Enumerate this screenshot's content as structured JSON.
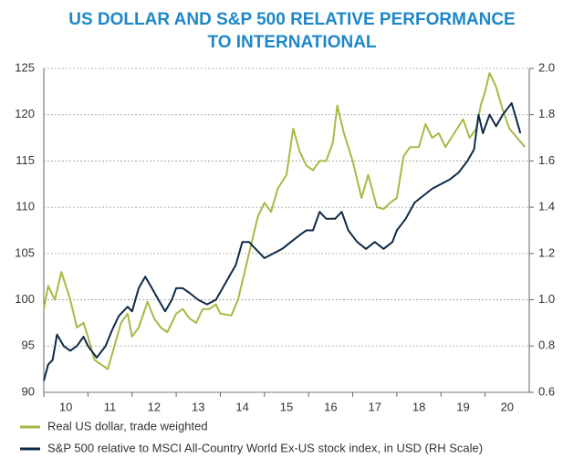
{
  "chart_data": {
    "type": "line",
    "title": "US DOLLAR AND S&P 500 RELATIVE PERFORMANCE",
    "subtitle": "TO INTERNATIONAL",
    "xlim": [
      10,
      21
    ],
    "xticks": [
      10,
      11,
      12,
      13,
      14,
      15,
      16,
      17,
      18,
      19,
      20
    ],
    "ylim": [
      90,
      125
    ],
    "yticks": [
      90,
      95,
      100,
      105,
      110,
      115,
      120,
      125
    ],
    "y2lim": [
      0.6,
      2.0
    ],
    "y2ticks": [
      0.6,
      0.8,
      {
        "value": 1.0,
        "label": "1.0"
      },
      1.2,
      1.4,
      1.6,
      1.8,
      {
        "value": 2.0,
        "label": "2.0"
      }
    ],
    "grid": true,
    "legend": "bottom",
    "series": [
      {
        "name": "Real US dollar, trade weighted",
        "color": "#a8b944",
        "x": [
          10.0,
          10.1,
          10.25,
          10.4,
          10.6,
          10.75,
          10.9,
          11.0,
          11.15,
          11.3,
          11.45,
          11.6,
          11.75,
          11.9,
          12.0,
          12.15,
          12.35,
          12.5,
          12.65,
          12.8,
          12.9,
          13.0,
          13.15,
          13.3,
          13.45,
          13.6,
          13.75,
          13.9,
          14.0,
          14.25,
          14.4,
          14.55,
          14.7,
          14.85,
          15.0,
          15.15,
          15.3,
          15.5,
          15.65,
          15.8,
          15.95,
          16.1,
          16.25,
          16.4,
          16.55,
          16.65,
          16.8,
          17.0,
          17.2,
          17.35,
          17.55,
          17.7,
          17.85,
          18.0,
          18.15,
          18.3,
          18.5,
          18.65,
          18.8,
          18.95,
          19.1,
          19.3,
          19.5,
          19.65,
          19.8,
          19.9,
          20.0,
          20.1,
          20.25,
          20.4,
          20.55,
          20.9
        ],
        "values": [
          99,
          101.5,
          100,
          103,
          100,
          97,
          97.5,
          96,
          93.5,
          93,
          92.5,
          95,
          97.5,
          98.5,
          96,
          97,
          99.8,
          98,
          97,
          96.5,
          97.5,
          98.5,
          99,
          98,
          97.5,
          99,
          99,
          99.5,
          98.5,
          98.3,
          100,
          103,
          106,
          109,
          110.5,
          109.5,
          112,
          113.5,
          118.5,
          116,
          114.5,
          114,
          115,
          115,
          117,
          121,
          118,
          115,
          111,
          113.5,
          110,
          109.8,
          110.5,
          111,
          115.5,
          116.5,
          116.5,
          119,
          117.5,
          118,
          116.5,
          118,
          119.5,
          117.5,
          118.5,
          121,
          122.5,
          124.5,
          123,
          120.5,
          118.5,
          116.5
        ]
      },
      {
        "name": "S&P 500 relative to MSCI All-Country World Ex-US stock index, in USD (RH Scale)",
        "color": "#0e2a47",
        "axis": "y2",
        "x": [
          10.0,
          10.1,
          10.2,
          10.3,
          10.45,
          10.6,
          10.75,
          10.9,
          11.0,
          11.2,
          11.4,
          11.55,
          11.7,
          11.9,
          12.0,
          12.15,
          12.3,
          12.45,
          12.6,
          12.75,
          12.9,
          13.0,
          13.15,
          13.3,
          13.5,
          13.7,
          13.9,
          14.05,
          14.2,
          14.35,
          14.5,
          14.65,
          14.8,
          15.0,
          15.2,
          15.4,
          15.6,
          15.8,
          15.95,
          16.1,
          16.25,
          16.4,
          16.6,
          16.75,
          16.9,
          17.1,
          17.3,
          17.5,
          17.7,
          17.9,
          18.0,
          18.2,
          18.4,
          18.6,
          18.8,
          19.0,
          19.2,
          19.4,
          19.6,
          19.75,
          19.85,
          19.95,
          20.1,
          20.25,
          20.4,
          20.6,
          20.8
        ],
        "values": [
          0.65,
          0.72,
          0.74,
          0.85,
          0.8,
          0.78,
          0.8,
          0.84,
          0.8,
          0.75,
          0.8,
          0.87,
          0.93,
          0.97,
          0.95,
          1.05,
          1.1,
          1.05,
          1.0,
          0.95,
          1.0,
          1.05,
          1.05,
          1.03,
          1.0,
          0.98,
          1.0,
          1.05,
          1.1,
          1.15,
          1.25,
          1.25,
          1.22,
          1.18,
          1.2,
          1.22,
          1.25,
          1.28,
          1.3,
          1.3,
          1.38,
          1.35,
          1.35,
          1.38,
          1.3,
          1.25,
          1.22,
          1.25,
          1.22,
          1.25,
          1.3,
          1.35,
          1.42,
          1.45,
          1.48,
          1.5,
          1.52,
          1.55,
          1.6,
          1.65,
          1.8,
          1.72,
          1.8,
          1.75,
          1.8,
          1.85,
          1.72
        ]
      }
    ]
  }
}
